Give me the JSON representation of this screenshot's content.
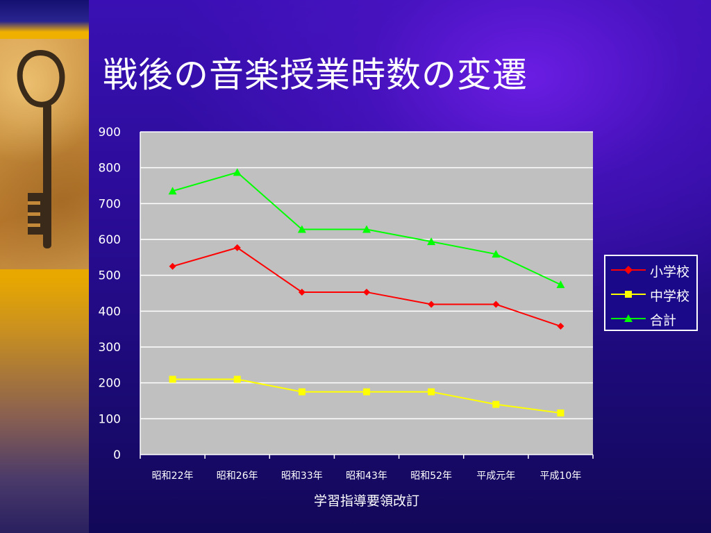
{
  "slide": {
    "title": "戦後の音楽授業時数の変遷"
  },
  "chart_data": {
    "type": "line",
    "categories": [
      "昭和22年",
      "昭和26年",
      "昭和33年",
      "昭和43年",
      "昭和52年",
      "平成元年",
      "平成10年"
    ],
    "series": [
      {
        "name": "小学校",
        "values": [
          525,
          577,
          453,
          453,
          419,
          419,
          358
        ],
        "color": "#ff0000",
        "marker": "diamond"
      },
      {
        "name": "中学校",
        "values": [
          210,
          210,
          175,
          175,
          175,
          140,
          116
        ],
        "color": "#ffff00",
        "marker": "square"
      },
      {
        "name": "合計",
        "values": [
          735,
          787,
          628,
          628,
          594,
          559,
          474
        ],
        "color": "#00ff00",
        "marker": "triangle"
      }
    ],
    "xlabel": "学習指導要領改訂",
    "ylabel": "",
    "ylim": [
      0,
      900
    ],
    "yticks": [
      0,
      100,
      200,
      300,
      400,
      500,
      600,
      700,
      800,
      900
    ],
    "grid": true,
    "legend_position": "right"
  }
}
